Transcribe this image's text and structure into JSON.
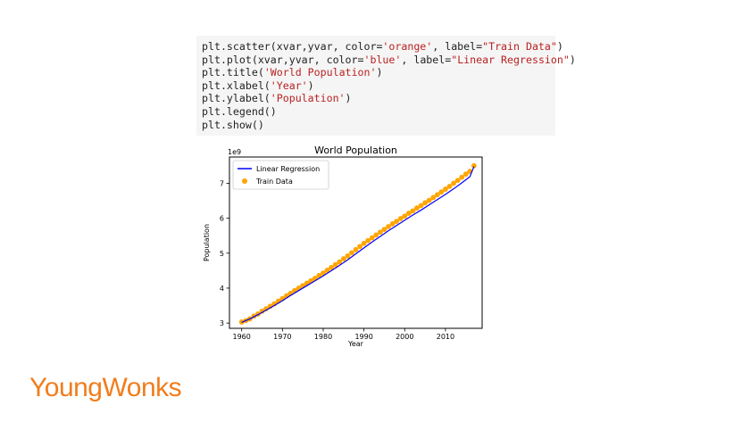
{
  "code": {
    "lines": [
      {
        "prefix": "plt.scatter(xvar,yvar, color=",
        "s1": "'orange'",
        "mid": ", label=",
        "s2": "\"Train Data\"",
        "suffix": ")"
      },
      {
        "prefix": "plt.plot(xvar,yvar, color=",
        "s1": "'blue'",
        "mid": ", label=",
        "s2": "\"Linear Regression\"",
        "suffix": ")"
      },
      {
        "prefix": "plt.title(",
        "s1": "'World Population'",
        "mid": "",
        "s2": "",
        "suffix": ")"
      },
      {
        "prefix": "plt.xlabel(",
        "s1": "'Year'",
        "mid": "",
        "s2": "",
        "suffix": ")"
      },
      {
        "prefix": "plt.ylabel(",
        "s1": "'Population'",
        "mid": "",
        "s2": "",
        "suffix": ")"
      },
      {
        "prefix": "plt.legend()",
        "s1": "",
        "mid": "",
        "s2": "",
        "suffix": ""
      },
      {
        "prefix": "plt.show()",
        "s1": "",
        "mid": "",
        "s2": "",
        "suffix": ""
      }
    ]
  },
  "chart_data": {
    "type": "scatter",
    "title": "World Population",
    "xlabel": "Year",
    "ylabel": "Population",
    "offset_label": "1e9",
    "xlim": [
      1957,
      2019
    ],
    "ylim": [
      2.85,
      7.75
    ],
    "xticks": [
      1960,
      1970,
      1980,
      1990,
      2000,
      2010
    ],
    "yticks": [
      3,
      4,
      5,
      6,
      7
    ],
    "grid": false,
    "legend_position": "top-left",
    "series": [
      {
        "name": "Linear Regression",
        "type": "line",
        "color": "#0000ff",
        "x": [
          1960,
          1962,
          1964,
          1966,
          1968,
          1970,
          1972,
          1974,
          1976,
          1978,
          1980,
          1982,
          1984,
          1986,
          1988,
          1990,
          1992,
          1994,
          1996,
          1998,
          2000,
          2002,
          2004,
          2006,
          2008,
          2010,
          2012,
          2014,
          2016,
          2017
        ],
        "y": [
          3.02,
          3.12,
          3.24,
          3.37,
          3.5,
          3.64,
          3.79,
          3.93,
          4.07,
          4.21,
          4.35,
          4.5,
          4.65,
          4.81,
          4.98,
          5.15,
          5.32,
          5.48,
          5.64,
          5.79,
          5.94,
          6.09,
          6.23,
          6.38,
          6.53,
          6.68,
          6.84,
          7.01,
          7.19,
          7.48
        ]
      },
      {
        "name": "Train Data",
        "type": "scatter",
        "color": "#ffa500",
        "x": [
          1960,
          1961,
          1962,
          1963,
          1964,
          1965,
          1966,
          1967,
          1968,
          1969,
          1970,
          1971,
          1972,
          1973,
          1974,
          1975,
          1976,
          1977,
          1978,
          1979,
          1980,
          1981,
          1982,
          1983,
          1984,
          1985,
          1986,
          1987,
          1988,
          1989,
          1990,
          1991,
          1992,
          1993,
          1994,
          1995,
          1996,
          1997,
          1998,
          1999,
          2000,
          2001,
          2002,
          2003,
          2004,
          2005,
          2006,
          2007,
          2008,
          2009,
          2010,
          2011,
          2012,
          2013,
          2014,
          2015,
          2016,
          2017
        ],
        "y": [
          3.03,
          3.07,
          3.12,
          3.2,
          3.26,
          3.34,
          3.41,
          3.48,
          3.55,
          3.63,
          3.7,
          3.78,
          3.85,
          3.93,
          4.0,
          4.07,
          4.14,
          4.21,
          4.28,
          4.36,
          4.43,
          4.51,
          4.59,
          4.67,
          4.75,
          4.84,
          4.92,
          5.01,
          5.1,
          5.19,
          5.28,
          5.36,
          5.44,
          5.52,
          5.6,
          5.68,
          5.76,
          5.84,
          5.91,
          5.99,
          6.06,
          6.14,
          6.21,
          6.29,
          6.36,
          6.44,
          6.51,
          6.59,
          6.67,
          6.75,
          6.83,
          6.91,
          7.0,
          7.08,
          7.17,
          7.26,
          7.34,
          7.5
        ]
      }
    ]
  },
  "brand": {
    "name": "YoungWonks"
  }
}
